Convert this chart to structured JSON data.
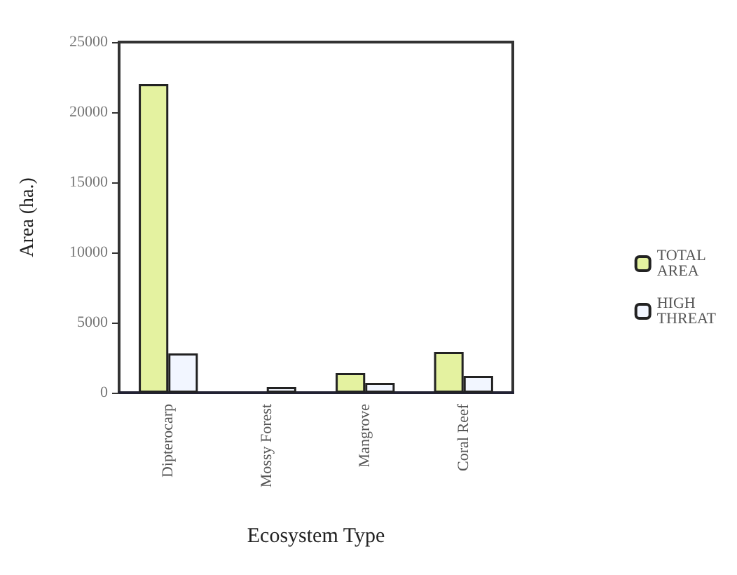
{
  "chart_data": {
    "type": "bar",
    "xlabel": "Ecosystem Type",
    "ylabel": "Area (ha.)",
    "categories": [
      "Dipterocarp",
      "Mossy Forest",
      "Mangrove",
      "Coral Reef"
    ],
    "series": [
      {
        "name": "TOTAL AREA",
        "color": "#e4f2a0",
        "values": [
          22000,
          null,
          1400,
          2900
        ]
      },
      {
        "name": "HIGH THREAT",
        "color": "#f2f6ff",
        "values": [
          2800,
          400,
          700,
          1200
        ]
      }
    ],
    "ylim": [
      0,
      25000
    ],
    "yticks": [
      0,
      5000,
      10000,
      15000,
      20000,
      25000
    ],
    "grid": false,
    "legend": "right"
  }
}
